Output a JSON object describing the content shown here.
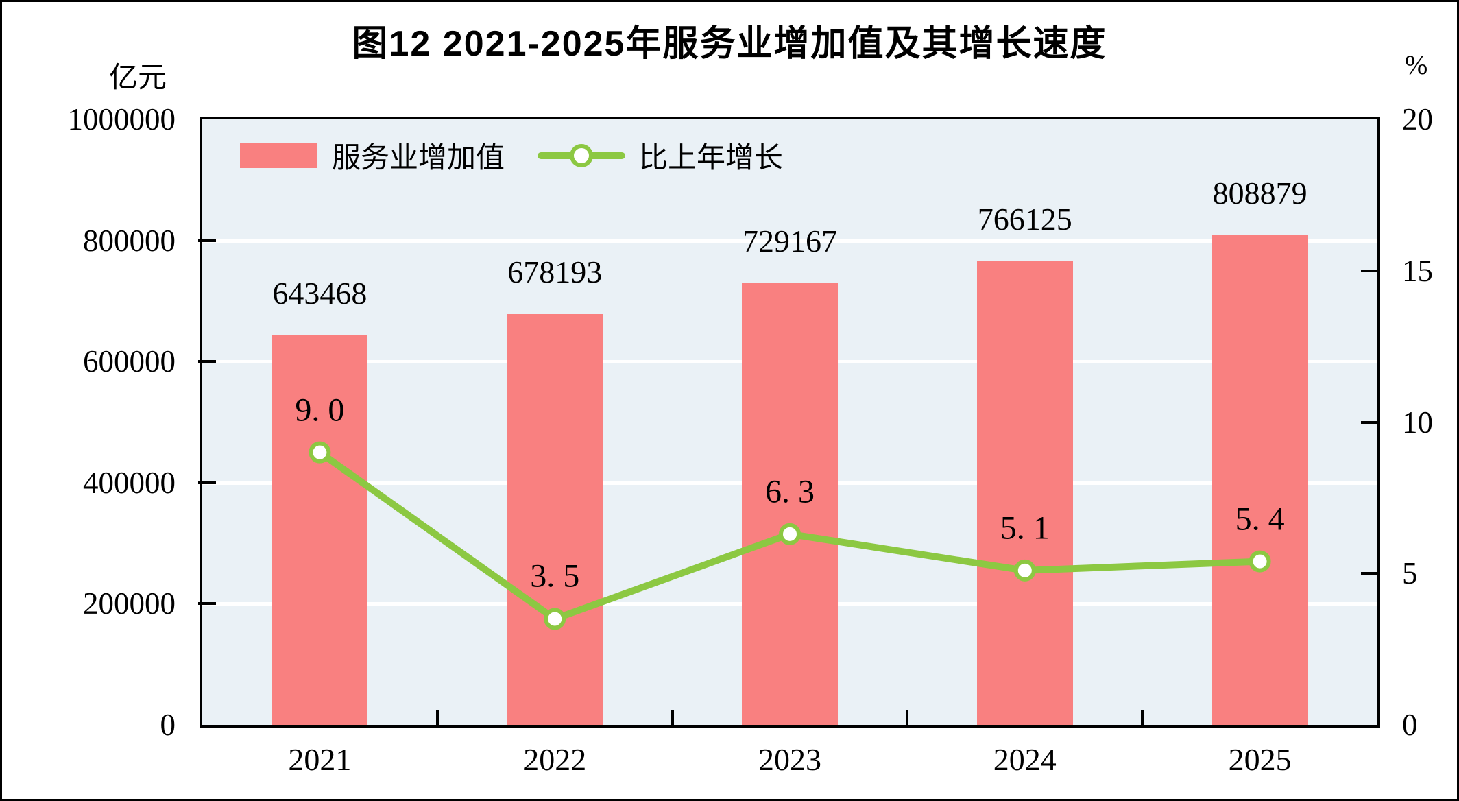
{
  "page": {
    "title": "图12  2021-2025年服务业增加值及其增长速度",
    "left_axis_unit": "亿元",
    "right_axis_unit": "%"
  },
  "legend": {
    "bar_label": "服务业增加值",
    "line_label": "比上年增长"
  },
  "colors": {
    "bar": "#F98080",
    "line": "#8CC842",
    "marker_fill": "#FFFFFF",
    "plot_background": "#EAF1F6",
    "gridline": "#FFFFFF",
    "border": "#000000",
    "text": "#000000"
  },
  "chart_data": {
    "type": "bar+line",
    "title": "图12  2021-2025年服务业增加值及其增长速度",
    "categories": [
      "2021",
      "2022",
      "2023",
      "2024",
      "2025"
    ],
    "series": [
      {
        "name": "服务业增加值",
        "type": "bar",
        "axis": "left",
        "values": [
          643468,
          678193,
          729167,
          766125,
          808879
        ],
        "value_labels": [
          "643468",
          "678193",
          "729167",
          "766125",
          "808879"
        ],
        "color": "#F98080"
      },
      {
        "name": "比上年增长",
        "type": "line",
        "axis": "right",
        "values": [
          9.0,
          3.5,
          6.3,
          5.1,
          5.4
        ],
        "value_labels": [
          "9. 0",
          "3. 5",
          "6. 3",
          "5. 1",
          "5. 4"
        ],
        "color": "#8CC842"
      }
    ],
    "left_axis": {
      "unit": "亿元",
      "min": 0,
      "max": 1000000,
      "tick_step": 200000,
      "tick_labels": [
        "1000000",
        "800000",
        "600000",
        "400000",
        "200000",
        "0"
      ]
    },
    "right_axis": {
      "unit": "%",
      "min": 0,
      "max": 20,
      "tick_step": 5,
      "tick_labels": [
        "20",
        "15",
        "10",
        "5",
        "0"
      ]
    },
    "grid": "horizontal white gridlines at left-axis major intervals",
    "legend_position": "inside plot, top-left"
  }
}
